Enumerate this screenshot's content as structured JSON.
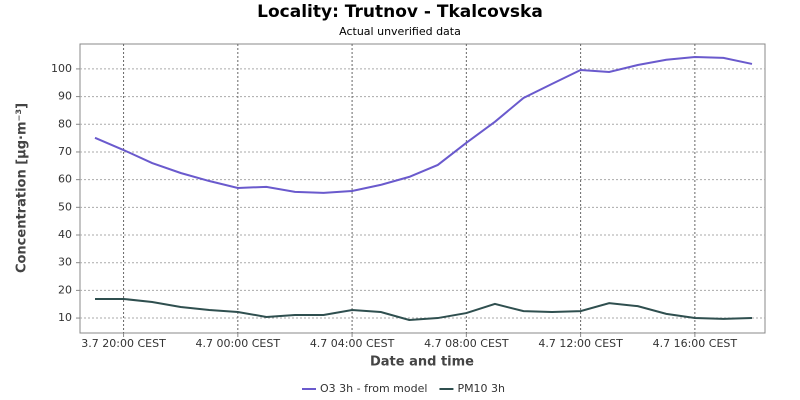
{
  "chart_data": {
    "type": "line",
    "title": "Locality: Trutnov - Tkalcovska",
    "subtitle": "Actual unverified data",
    "x_label": "Date and time",
    "y_label": "Concentration [µg·m⁻³]",
    "categories": [
      null,
      "3.7 20:00 CEST",
      null,
      null,
      null,
      "4.7 00:00 CEST",
      null,
      null,
      null,
      "4.7 04:00 CEST",
      null,
      null,
      null,
      "4.7 08:00 CEST",
      null,
      null,
      null,
      "4.7 12:00 CEST",
      null,
      null,
      null,
      "4.7 16:00 CEST",
      null,
      null
    ],
    "series": [
      {
        "name": "O3 3h - from model",
        "color": "#6a5acd",
        "values": [
          75.1,
          70.7,
          66,
          62.4,
          59.5,
          57,
          57.4,
          55.6,
          55.2,
          55.9,
          58.1,
          61,
          65.3,
          73.3,
          80.9,
          89.5,
          94.6,
          99.6,
          98.9,
          101.4,
          103.3,
          104.3,
          104,
          101.8
        ]
      },
      {
        "name": "PM10 3h",
        "color": "#2f4f4f",
        "values": [
          16.9,
          16.9,
          15.8,
          14,
          12.9,
          12.2,
          10.4,
          11.1,
          11.1,
          12.9,
          12.2,
          9.3,
          10,
          11.8,
          15.1,
          12.5,
          12.2,
          12.5,
          15.4,
          14.3,
          11.5,
          10,
          9.7,
          10
        ]
      }
    ],
    "ylim": [
      4.6,
      109
    ],
    "yticks": [
      10,
      20,
      30,
      40,
      50,
      60,
      70,
      80,
      90,
      100
    ],
    "grid": true
  }
}
